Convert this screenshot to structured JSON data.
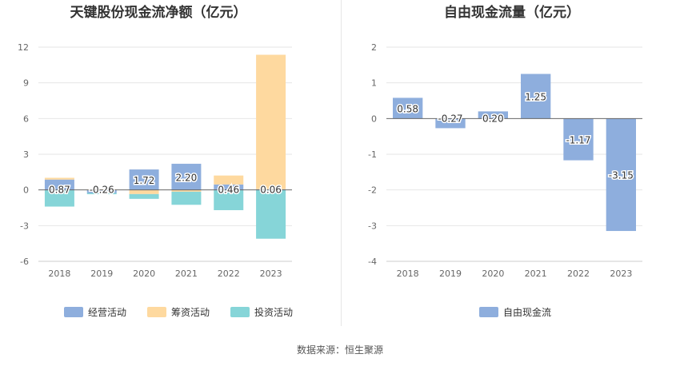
{
  "source": "数据来源：恒生聚源",
  "colors": {
    "operating": "#8eaedd",
    "financing": "#fed99f",
    "investing": "#86d5d8",
    "fcf": "#8eaedd",
    "grid": "#e6e6e6",
    "axis": "#666666"
  },
  "chart_data": [
    {
      "type": "bar",
      "stacked": true,
      "title": "天键股份现金流净额（亿元）",
      "categories": [
        "2018",
        "2019",
        "2020",
        "2021",
        "2022",
        "2023"
      ],
      "series": [
        {
          "name": "经营活动",
          "values": [
            0.87,
            -0.26,
            1.72,
            2.2,
            0.46,
            0.06
          ]
        },
        {
          "name": "筹资活动",
          "values": [
            0.15,
            0.05,
            -0.35,
            -0.15,
            0.75,
            11.3
          ]
        },
        {
          "name": "投资活动",
          "values": [
            -1.4,
            -0.1,
            -0.4,
            -1.1,
            -1.7,
            -4.1
          ]
        }
      ],
      "data_labels": [
        "0.87",
        "-0.26",
        "1.72",
        "2.20",
        "0.46",
        "0.06"
      ],
      "yticks": [
        "12",
        "9",
        "6",
        "3",
        "0",
        "-3",
        "-6"
      ],
      "ylim": [
        -6,
        12
      ],
      "grid": true,
      "legend": "bottom"
    },
    {
      "type": "bar",
      "title": "自由现金流量（亿元）",
      "categories": [
        "2018",
        "2019",
        "2020",
        "2021",
        "2022",
        "2023"
      ],
      "series": [
        {
          "name": "自由现金流",
          "values": [
            0.58,
            -0.27,
            0.2,
            1.25,
            -1.17,
            -3.15
          ]
        }
      ],
      "data_labels": [
        "0.58",
        "-0.27",
        "0.20",
        "1.25",
        "-1.17",
        "-3.15"
      ],
      "yticks": [
        "2",
        "1",
        "0",
        "-1",
        "-2",
        "-3",
        "-4"
      ],
      "ylim": [
        -4,
        2
      ],
      "grid": true,
      "legend": "bottom"
    }
  ]
}
